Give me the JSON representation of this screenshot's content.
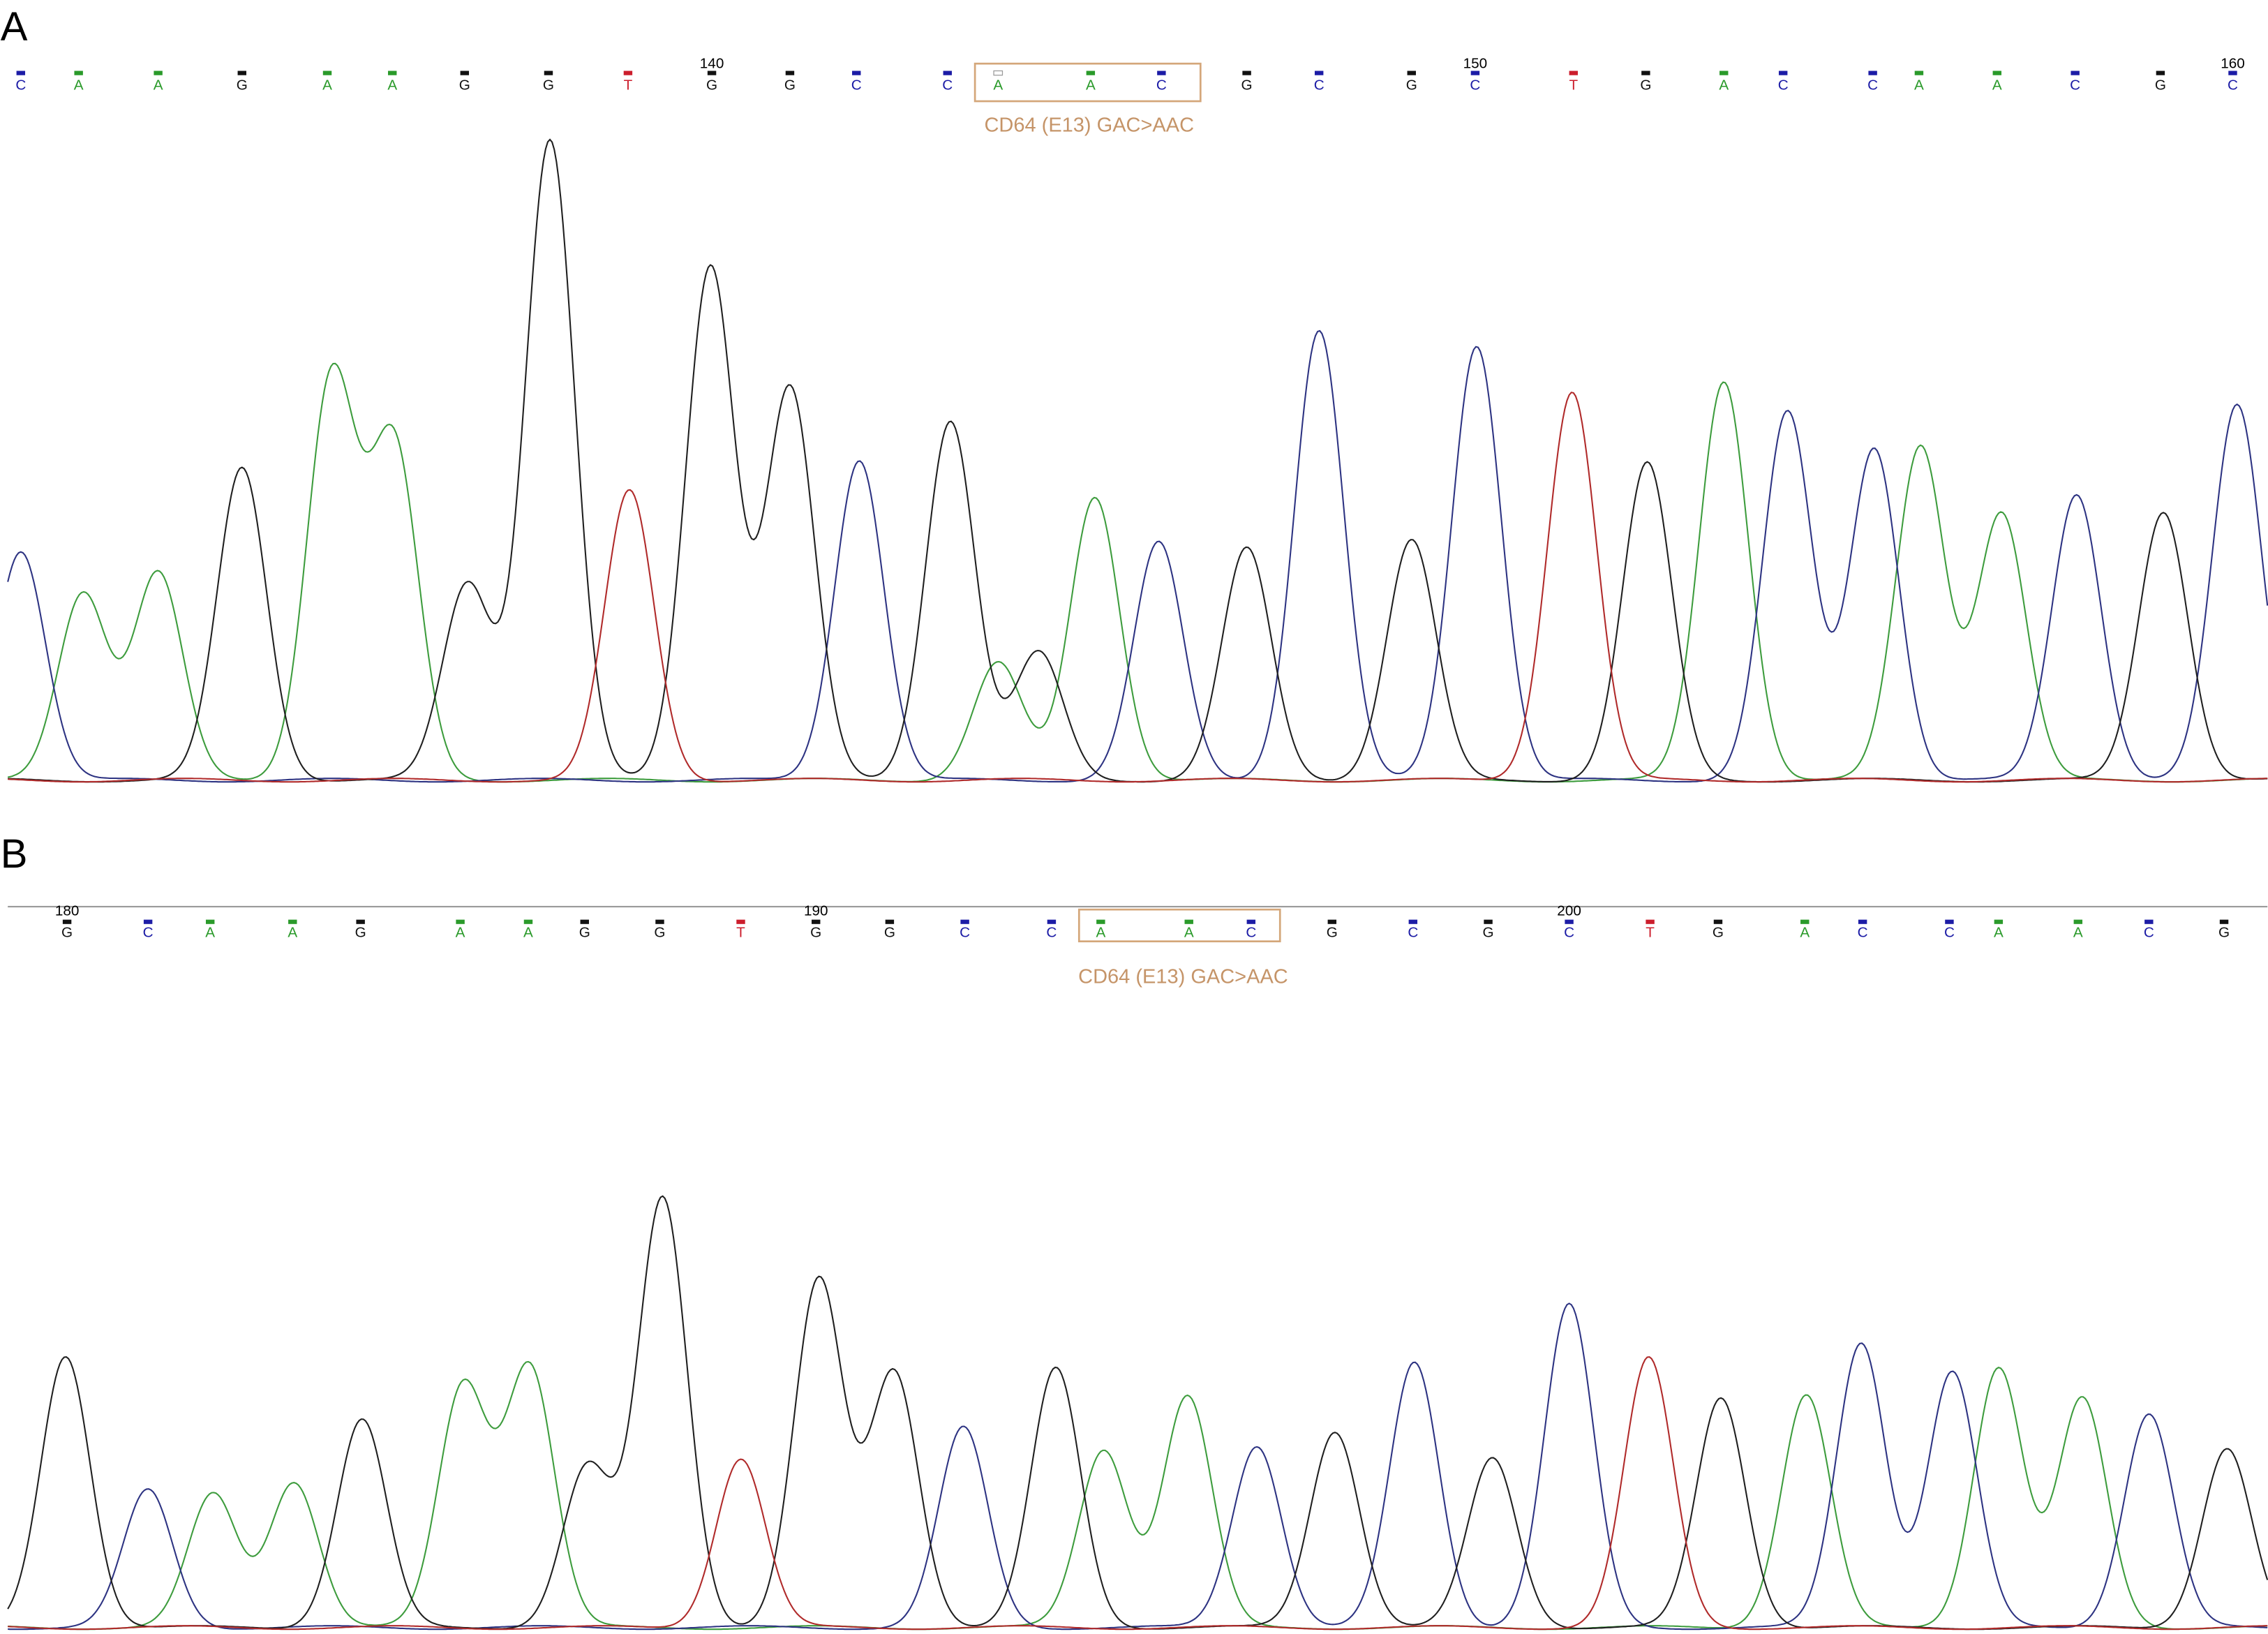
{
  "panels": [
    {
      "label": "A",
      "bases": [
        "C",
        "A",
        "A",
        "G",
        "A",
        "A",
        "G",
        "G",
        "T",
        "G",
        "G",
        "C",
        "C",
        "A",
        "A",
        "C",
        "G",
        "C",
        "G",
        "C",
        "T",
        "G",
        "A",
        "C",
        "C",
        "A",
        "A",
        "C",
        "G",
        "C"
      ],
      "positions": [
        140,
        150,
        160
      ],
      "annotation": "CD64 (E13) GAC>AAC"
    },
    {
      "label": "B",
      "bases": [
        "G",
        "C",
        "A",
        "A",
        "G",
        "A",
        "A",
        "G",
        "G",
        "T",
        "G",
        "G",
        "C",
        "C",
        "A",
        "A",
        "C",
        "G",
        "C",
        "G",
        "C",
        "T",
        "G",
        "A",
        "C",
        "C",
        "A",
        "A",
        "C",
        "G"
      ],
      "positions": [
        180,
        190,
        200
      ],
      "annotation": "CD64 (E13) GAC>AAC"
    }
  ]
}
